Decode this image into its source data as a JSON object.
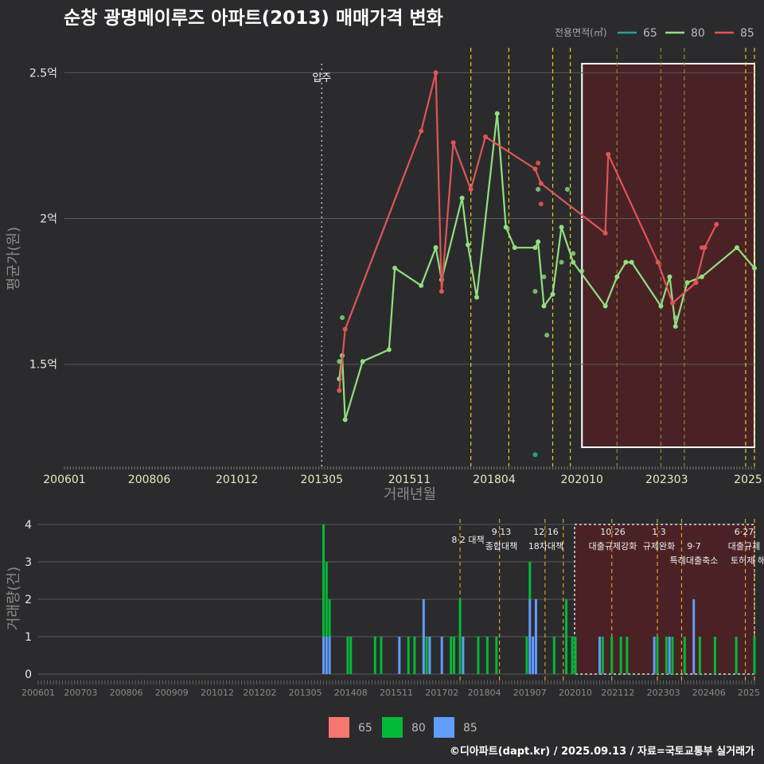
{
  "title": "순창 광명메이루즈 아파트(2013) 매매가격 변화",
  "legend": {
    "title": "전용면적(㎡)",
    "items": [
      {
        "label": "65",
        "color": "#2a9d9a"
      },
      {
        "label": "80",
        "color": "#90e080"
      },
      {
        "label": "85",
        "color": "#e05555"
      }
    ]
  },
  "bar_legend": [
    {
      "label": "65",
      "color": "#f87670"
    },
    {
      "label": "80",
      "color": "#00ba38"
    },
    {
      "label": "85",
      "color": "#619cff"
    }
  ],
  "footer": "©디아파트(dapt.kr) / 2025.09.13 / 자료=국토교통부 실거래가",
  "move_in_label": "입주",
  "chart_data": [
    {
      "type": "line",
      "title": "순창 광명메이루즈 아파트(2013) 매매가격 변화",
      "xlabel": "거래년월",
      "ylabel": "평균가(원)",
      "x_tick_labels": [
        "200601",
        "200806",
        "201012",
        "201305",
        "201511",
        "201804",
        "202010",
        "202303",
        "2025"
      ],
      "y_tick_labels": [
        "1.5억",
        "2억",
        "2.5억"
      ],
      "y_tick_values": [
        1.5,
        2.0,
        2.5
      ],
      "ylim": [
        1.15,
        2.58
      ],
      "x_range": [
        "2006-01",
        "2025-09"
      ],
      "units": "억",
      "series": [
        {
          "name": "65",
          "points": [
            [
              "2019-06",
              1.19
            ]
          ]
        },
        {
          "name": "80",
          "points": [
            [
              "2013-11",
              1.45
            ],
            [
              "2013-12",
              1.53
            ],
            [
              "2014-01",
              1.31
            ],
            [
              "2014-07",
              1.51
            ],
            [
              "2015-04",
              1.55
            ],
            [
              "2015-06",
              1.83
            ],
            [
              "2016-03",
              1.77
            ],
            [
              "2016-08",
              1.9
            ],
            [
              "2016-10",
              1.79
            ],
            [
              "2017-05",
              2.07
            ],
            [
              "2017-07",
              1.91
            ],
            [
              "2017-10",
              1.73
            ],
            [
              "2018-05",
              2.36
            ],
            [
              "2018-08",
              1.97
            ],
            [
              "2018-11",
              1.9
            ],
            [
              "2019-06",
              1.9
            ],
            [
              "2019-07",
              1.92
            ],
            [
              "2019-09",
              1.7
            ],
            [
              "2019-12",
              1.74
            ],
            [
              "2020-03",
              1.97
            ],
            [
              "2020-07",
              1.85
            ],
            [
              "2021-06",
              1.7
            ],
            [
              "2021-10",
              1.8
            ],
            [
              "2022-01",
              1.85
            ],
            [
              "2022-03",
              1.85
            ],
            [
              "2023-01",
              1.7
            ],
            [
              "2023-04",
              1.8
            ],
            [
              "2023-06",
              1.63
            ],
            [
              "2023-10",
              1.78
            ],
            [
              "2024-03",
              1.8
            ],
            [
              "2025-03",
              1.9
            ],
            [
              "2025-09",
              1.83
            ]
          ]
        },
        {
          "name": "85",
          "points": [
            [
              "2013-11",
              1.41
            ],
            [
              "2014-01",
              1.62
            ],
            [
              "2016-03",
              2.3
            ],
            [
              "2016-08",
              2.5
            ],
            [
              "2016-10",
              1.75
            ],
            [
              "2017-02",
              2.26
            ],
            [
              "2017-08",
              2.1
            ],
            [
              "2018-01",
              2.28
            ],
            [
              "2019-06",
              2.17
            ],
            [
              "2019-08",
              2.12
            ],
            [
              "2021-06",
              1.95
            ],
            [
              "2021-07",
              2.22
            ],
            [
              "2022-12",
              1.85
            ],
            [
              "2023-05",
              1.71
            ],
            [
              "2024-01",
              1.78
            ],
            [
              "2024-04",
              1.9
            ],
            [
              "2024-08",
              1.98
            ]
          ]
        }
      ],
      "extra_points_80": [
        [
          "2013-11",
          1.51
        ],
        [
          "2013-12",
          1.66
        ],
        [
          "2019-06",
          1.75
        ],
        [
          "2019-07",
          2.1
        ],
        [
          "2019-09",
          1.8
        ],
        [
          "2019-10",
          1.6
        ],
        [
          "2020-03",
          1.85
        ],
        [
          "2020-05",
          2.1
        ],
        [
          "2020-07",
          1.88
        ],
        [
          "2020-10",
          1.82
        ],
        [
          "2023-06",
          1.66
        ]
      ],
      "extra_points_85": [
        [
          "2019-07",
          2.19
        ],
        [
          "2019-08",
          2.05
        ],
        [
          "2024-03",
          1.9
        ]
      ]
    },
    {
      "type": "bar",
      "ylabel": "거래량(건)",
      "ylim": [
        0,
        4
      ],
      "y_tick_labels": [
        "0",
        "1",
        "2",
        "3",
        "4"
      ],
      "x_tick_labels": [
        "200601",
        "200703",
        "200806",
        "200909",
        "201012",
        "201202",
        "201305",
        "201408",
        "201511",
        "201702",
        "201804",
        "201907",
        "202010",
        "202112",
        "202303",
        "202406",
        "2025"
      ],
      "bars": [
        {
          "month": "2013-11",
          "80": 3,
          "85": 1
        },
        {
          "month": "2013-12",
          "80": 2,
          "85": 1
        },
        {
          "month": "2014-01",
          "80": 1,
          "85": 1
        },
        {
          "month": "2014-07",
          "80": 1
        },
        {
          "month": "2014-08",
          "80": 1
        },
        {
          "month": "2015-04",
          "80": 1
        },
        {
          "month": "2015-06",
          "80": 1
        },
        {
          "month": "2015-12",
          "85": 1
        },
        {
          "month": "2016-03",
          "80": 1
        },
        {
          "month": "2016-05",
          "80": 1
        },
        {
          "month": "2016-08",
          "85": 2
        },
        {
          "month": "2016-09",
          "80": 1
        },
        {
          "month": "2016-10",
          "85": 1
        },
        {
          "month": "2017-02",
          "85": 1
        },
        {
          "month": "2017-05",
          "80": 1
        },
        {
          "month": "2017-06",
          "80": 1
        },
        {
          "month": "2017-08",
          "80": 2
        },
        {
          "month": "2017-09",
          "85": 1
        },
        {
          "month": "2018-02",
          "80": 1
        },
        {
          "month": "2018-05",
          "80": 1
        },
        {
          "month": "2018-08",
          "80": 1
        },
        {
          "month": "2019-06",
          "80": 1
        },
        {
          "month": "2019-07",
          "80": 1,
          "85": 2
        },
        {
          "month": "2019-08",
          "85": 1
        },
        {
          "month": "2019-09",
          "85": 2
        },
        {
          "month": "2020-03",
          "80": 1
        },
        {
          "month": "2020-07",
          "80": 2
        },
        {
          "month": "2020-09",
          "80": 1
        },
        {
          "month": "2020-10",
          "80": 1
        },
        {
          "month": "2021-06",
          "85": 1
        },
        {
          "month": "2021-07",
          "80": 1
        },
        {
          "month": "2021-10",
          "80": 1
        },
        {
          "month": "2022-01",
          "80": 1
        },
        {
          "month": "2022-03",
          "80": 1
        },
        {
          "month": "2022-12",
          "85": 1
        },
        {
          "month": "2023-01",
          "80": 1
        },
        {
          "month": "2023-04",
          "80": 1
        },
        {
          "month": "2023-05",
          "85": 1
        },
        {
          "month": "2023-06",
          "80": 1
        },
        {
          "month": "2023-10",
          "80": 1
        },
        {
          "month": "2024-01",
          "85": 2
        },
        {
          "month": "2024-03",
          "80": 1
        },
        {
          "month": "2024-08",
          "80": 1
        },
        {
          "month": "2025-03",
          "80": 1
        },
        {
          "month": "2025-09",
          "80": 1
        }
      ]
    }
  ],
  "policy_events": [
    {
      "month": "2017-08",
      "label": "8·2 대책"
    },
    {
      "month": "2018-09",
      "label": "9·13 종합대책"
    },
    {
      "month": "2019-12",
      "label": "12·16 18차대책"
    },
    {
      "month": "2020-06",
      "label": ""
    },
    {
      "month": "2021-10",
      "label": "10·26 대출규제강화"
    },
    {
      "month": "2023-01",
      "label": "1·3 규제완화"
    },
    {
      "month": "2023-09",
      "label": "9·7 특례대출축소"
    },
    {
      "month": "2025-06",
      "label": "6·27 대출규제"
    },
    {
      "month": "2025-09",
      "label": "토허제 해제"
    }
  ]
}
